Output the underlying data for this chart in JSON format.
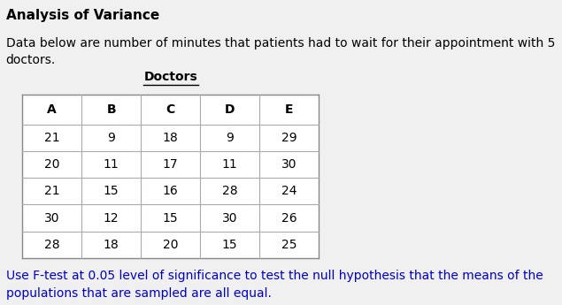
{
  "title": "Analysis of Variance",
  "intro_text": "Data below are number of minutes that patients had to wait for their appointment with 5\ndoctors.",
  "table_header_label": "Doctors",
  "columns": [
    "A",
    "B",
    "C",
    "D",
    "E"
  ],
  "rows": [
    [
      21,
      9,
      18,
      9,
      29
    ],
    [
      20,
      11,
      17,
      11,
      30
    ],
    [
      21,
      15,
      16,
      28,
      24
    ],
    [
      30,
      12,
      15,
      30,
      26
    ],
    [
      28,
      18,
      20,
      15,
      25
    ]
  ],
  "footer_text": "Use F-test at 0.05 level of significance to test the null hypothesis that the means of the\npopulations that are sampled are all equal.",
  "bg_color": "#f0f0f0",
  "table_bg_color": "#ffffff",
  "title_color": "#000000",
  "intro_color": "#000000",
  "footer_color": "#0000cc",
  "header_color": "#000000",
  "data_color": "#000000",
  "title_fontsize": 11,
  "intro_fontsize": 10,
  "footer_fontsize": 10,
  "table_fontsize": 10,
  "col_header_fontsize": 10
}
